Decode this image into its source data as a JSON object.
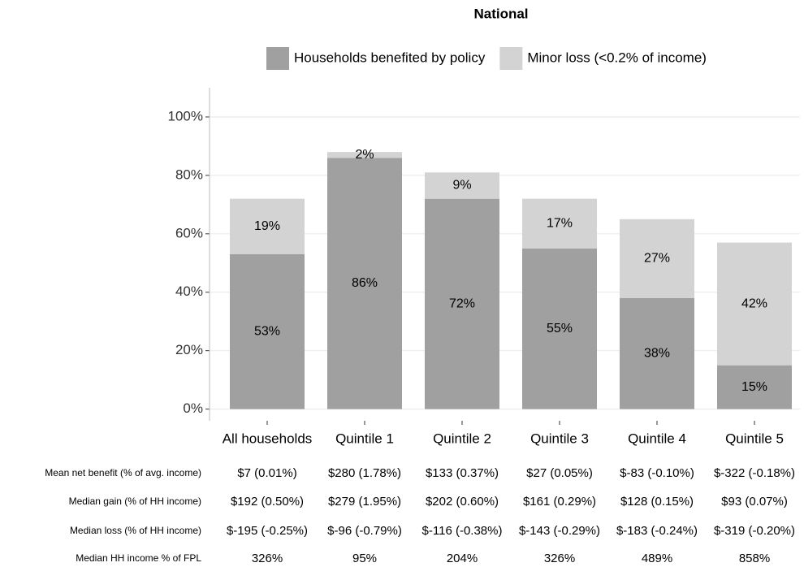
{
  "chart_data": {
    "type": "stacked_bar",
    "title": "National",
    "categories": [
      "All households",
      "Quintile 1",
      "Quintile 2",
      "Quintile 3",
      "Quintile 4",
      "Quintile 5"
    ],
    "series": [
      {
        "name": "Households benefited by policy",
        "color": "#a0a0a0",
        "values": [
          53,
          86,
          72,
          55,
          38,
          15
        ],
        "value_labels": [
          "53%",
          "86%",
          "72%",
          "55%",
          "38%",
          "15%"
        ]
      },
      {
        "name": "Minor loss (<0.2% of income)",
        "color": "#d3d3d3",
        "values": [
          19,
          2,
          9,
          17,
          27,
          42
        ],
        "value_labels": [
          "19%",
          "2%",
          "9%",
          "17%",
          "27%",
          "42%"
        ]
      }
    ],
    "ylim": [
      -4,
      110
    ],
    "yticks": [
      {
        "value": 0,
        "label": "0%"
      },
      {
        "value": 20,
        "label": "20%"
      },
      {
        "value": 40,
        "label": "40%"
      },
      {
        "value": 60,
        "label": "60%"
      },
      {
        "value": 80,
        "label": "80%"
      },
      {
        "value": 100,
        "label": "100%"
      }
    ],
    "grid": true,
    "legend": "top",
    "table": {
      "rows": [
        {
          "label": "Mean net benefit (% of avg. income)",
          "values": [
            "$7 (0.01%)",
            "$280 (1.78%)",
            "$133 (0.37%)",
            "$27 (0.05%)",
            "$-83 (-0.10%)",
            "$-322 (-0.18%)"
          ]
        },
        {
          "label": "Median gain (% of HH income)",
          "values": [
            "$192 (0.50%)",
            "$279 (1.95%)",
            "$202 (0.60%)",
            "$161 (0.29%)",
            "$128 (0.15%)",
            "$93 (0.07%)"
          ]
        },
        {
          "label": "Median loss (% of HH income)",
          "values": [
            "$-195 (-0.25%)",
            "$-96 (-0.79%)",
            "$-116 (-0.38%)",
            "$-143 (-0.29%)",
            "$-183 (-0.24%)",
            "$-319 (-0.20%)"
          ]
        },
        {
          "label": "Median HH income % of FPL",
          "values": [
            "326%",
            "95%",
            "204%",
            "326%",
            "489%",
            "858%"
          ]
        }
      ]
    }
  }
}
